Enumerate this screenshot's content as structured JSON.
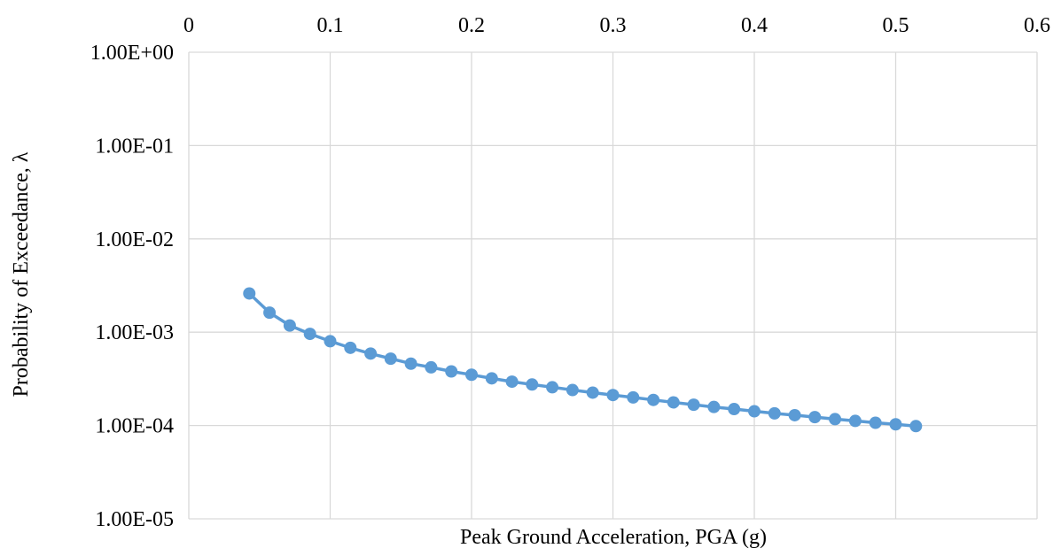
{
  "chart_data": {
    "type": "scatter",
    "xlabel": "Peak Ground Acceleration, PGA (g)",
    "ylabel": "Probability of Exceedance, λ",
    "xlim": [
      0,
      0.6
    ],
    "ylim": [
      1e-05,
      1
    ],
    "y_scale": "log",
    "x_axis_position": "top",
    "grid": true,
    "x_ticks": [
      "0",
      "0.1",
      "0.2",
      "0.3",
      "0.4",
      "0.5",
      "0.6"
    ],
    "y_ticks": [
      "1.00E+00",
      "1.00E-01",
      "1.00E-02",
      "1.00E-03",
      "1.00E-04",
      "1.00E-05"
    ],
    "series_color": "#5b9bd5",
    "series": [
      {
        "x": [
          0.0428,
          0.0571,
          0.0714,
          0.0857,
          0.1,
          0.1143,
          0.1286,
          0.1428,
          0.1571,
          0.1714,
          0.1857,
          0.2,
          0.2143,
          0.2286,
          0.2428,
          0.2571,
          0.2714,
          0.2857,
          0.3,
          0.3143,
          0.3286,
          0.3428,
          0.3571,
          0.3714,
          0.3857,
          0.4,
          0.4143,
          0.4286,
          0.4428,
          0.4571,
          0.4714,
          0.4857,
          0.5,
          0.5143
        ],
        "y": [
          0.0026,
          0.00162,
          0.00118,
          0.00096,
          0.0008,
          0.00068,
          0.00059,
          0.00052,
          0.00046,
          0.00042,
          0.00038,
          0.00035,
          0.00032,
          0.000295,
          0.000275,
          0.000257,
          0.00024,
          0.000225,
          0.000212,
          0.0002,
          0.000188,
          0.000177,
          0.000167,
          0.000158,
          0.00015,
          0.000142,
          0.000135,
          0.000129,
          0.000123,
          0.000117,
          0.000112,
          0.000107,
          0.000103,
          9.85e-05
        ]
      }
    ]
  }
}
